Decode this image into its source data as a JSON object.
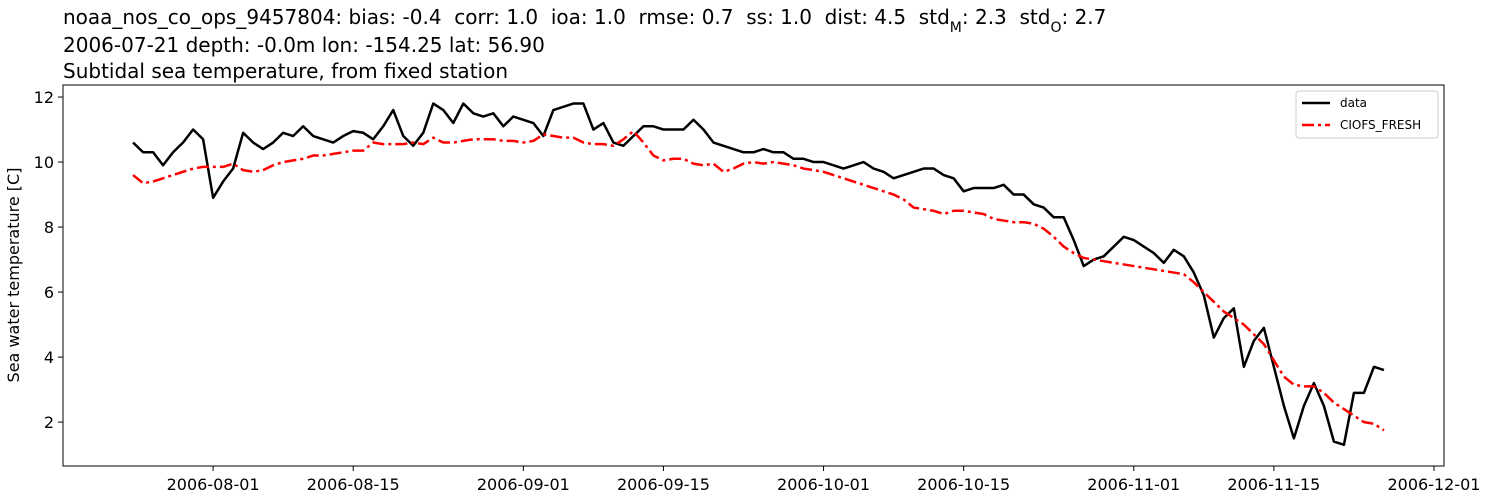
{
  "chart_data": {
    "type": "line",
    "title": [
      {
        "text": "noaa_nos_co_ops_9457804: bias: -0.4  corr: 1.0  ioa: 1.0  rmse: 0.7  ss: 1.0  dist: 4.5  std"
      },
      {
        "text": "M",
        "sub": true
      },
      {
        "text": ": 2.3  std"
      },
      {
        "text": "O",
        "sub": true
      },
      {
        "text": ": 2.7"
      }
    ],
    "subtitle": [
      "2006-07-21 depth: -0.0m lon: -154.25 lat: 56.90",
      "Subtidal sea temperature, from fixed station"
    ],
    "y_label": "Sea water temperature [C]",
    "x": [
      "2006-07-24",
      "2006-07-25",
      "2006-07-26",
      "2006-07-27",
      "2006-07-28",
      "2006-07-29",
      "2006-07-30",
      "2006-07-31",
      "2006-08-01",
      "2006-08-02",
      "2006-08-03",
      "2006-08-04",
      "2006-08-05",
      "2006-08-06",
      "2006-08-07",
      "2006-08-08",
      "2006-08-09",
      "2006-08-10",
      "2006-08-11",
      "2006-08-12",
      "2006-08-13",
      "2006-08-14",
      "2006-08-15",
      "2006-08-16",
      "2006-08-17",
      "2006-08-18",
      "2006-08-19",
      "2006-08-20",
      "2006-08-21",
      "2006-08-22",
      "2006-08-23",
      "2006-08-24",
      "2006-08-25",
      "2006-08-26",
      "2006-08-27",
      "2006-08-28",
      "2006-08-29",
      "2006-08-30",
      "2006-08-31",
      "2006-09-01",
      "2006-09-02",
      "2006-09-03",
      "2006-09-04",
      "2006-09-05",
      "2006-09-06",
      "2006-09-07",
      "2006-09-08",
      "2006-09-09",
      "2006-09-10",
      "2006-09-11",
      "2006-09-12",
      "2006-09-13",
      "2006-09-14",
      "2006-09-15",
      "2006-09-16",
      "2006-09-17",
      "2006-09-18",
      "2006-09-19",
      "2006-09-20",
      "2006-09-21",
      "2006-09-22",
      "2006-09-23",
      "2006-09-24",
      "2006-09-25",
      "2006-09-26",
      "2006-09-27",
      "2006-09-28",
      "2006-09-29",
      "2006-09-30",
      "2006-10-01",
      "2006-10-02",
      "2006-10-03",
      "2006-10-04",
      "2006-10-05",
      "2006-10-06",
      "2006-10-07",
      "2006-10-08",
      "2006-10-09",
      "2006-10-10",
      "2006-10-11",
      "2006-10-12",
      "2006-10-13",
      "2006-10-14",
      "2006-10-15",
      "2006-10-16",
      "2006-10-17",
      "2006-10-18",
      "2006-10-19",
      "2006-10-20",
      "2006-10-21",
      "2006-10-22",
      "2006-10-23",
      "2006-10-24",
      "2006-10-25",
      "2006-10-26",
      "2006-10-27",
      "2006-10-28",
      "2006-10-29",
      "2006-10-30",
      "2006-10-31",
      "2006-11-01",
      "2006-11-02",
      "2006-11-03",
      "2006-11-04",
      "2006-11-05",
      "2006-11-06",
      "2006-11-07",
      "2006-11-08",
      "2006-11-09",
      "2006-11-10",
      "2006-11-11",
      "2006-11-12",
      "2006-11-13",
      "2006-11-14",
      "2006-11-15",
      "2006-11-16",
      "2006-11-17",
      "2006-11-18",
      "2006-11-19",
      "2006-11-20",
      "2006-11-21",
      "2006-11-22",
      "2006-11-23",
      "2006-11-24",
      "2006-11-25",
      "2006-11-26"
    ],
    "series": [
      {
        "name": "data",
        "color": "#000000",
        "dash": "solid",
        "values": [
          10.6,
          10.3,
          10.3,
          9.9,
          10.3,
          10.6,
          11.0,
          10.7,
          8.9,
          9.4,
          9.8,
          10.9,
          10.6,
          10.4,
          10.6,
          10.9,
          10.8,
          11.1,
          10.8,
          10.7,
          10.6,
          10.8,
          10.95,
          10.9,
          10.7,
          11.1,
          11.6,
          10.8,
          10.5,
          10.9,
          11.8,
          11.6,
          11.2,
          11.8,
          11.5,
          11.4,
          11.5,
          11.1,
          11.4,
          11.3,
          11.2,
          10.8,
          11.6,
          11.7,
          11.8,
          11.8,
          11.0,
          11.2,
          10.6,
          10.5,
          10.8,
          11.1,
          11.1,
          11.0,
          11.0,
          11.0,
          11.3,
          11.0,
          10.6,
          10.5,
          10.4,
          10.3,
          10.3,
          10.4,
          10.3,
          10.3,
          10.1,
          10.1,
          10.0,
          10.0,
          9.9,
          9.8,
          9.9,
          10.0,
          9.8,
          9.7,
          9.5,
          9.6,
          9.7,
          9.8,
          9.8,
          9.6,
          9.5,
          9.1,
          9.2,
          9.2,
          9.2,
          9.3,
          9.0,
          9.0,
          8.7,
          8.6,
          8.3,
          8.3,
          7.6,
          6.8,
          7.0,
          7.1,
          7.4,
          7.7,
          7.6,
          7.4,
          7.2,
          6.9,
          7.3,
          7.1,
          6.6,
          5.9,
          4.6,
          5.2,
          5.5,
          3.7,
          4.5,
          4.9,
          3.7,
          2.5,
          1.5,
          2.5,
          3.2,
          2.5,
          1.4,
          1.3,
          2.9,
          2.9,
          3.7,
          3.6
        ]
      },
      {
        "name": "CIOFS_FRESH",
        "color": "#ff0000",
        "dash": "dashdot",
        "values": [
          9.6,
          9.35,
          9.4,
          9.5,
          9.6,
          9.7,
          9.8,
          9.85,
          9.85,
          9.85,
          9.95,
          9.75,
          9.7,
          9.75,
          9.9,
          10.0,
          10.05,
          10.1,
          10.2,
          10.2,
          10.25,
          10.3,
          10.35,
          10.35,
          10.6,
          10.55,
          10.55,
          10.55,
          10.6,
          10.55,
          10.75,
          10.6,
          10.6,
          10.65,
          10.7,
          10.7,
          10.7,
          10.65,
          10.65,
          10.6,
          10.65,
          10.85,
          10.8,
          10.75,
          10.75,
          10.6,
          10.55,
          10.55,
          10.5,
          10.7,
          10.95,
          10.6,
          10.2,
          10.05,
          10.1,
          10.1,
          9.95,
          9.9,
          9.95,
          9.7,
          9.8,
          9.95,
          10.0,
          9.95,
          10.0,
          9.95,
          9.9,
          9.8,
          9.75,
          9.7,
          9.6,
          9.5,
          9.4,
          9.3,
          9.2,
          9.1,
          9.0,
          8.85,
          8.6,
          8.55,
          8.5,
          8.4,
          8.5,
          8.5,
          8.45,
          8.4,
          8.25,
          8.2,
          8.15,
          8.15,
          8.1,
          7.95,
          7.7,
          7.4,
          7.2,
          7.05,
          7.0,
          6.95,
          6.9,
          6.85,
          6.8,
          6.75,
          6.7,
          6.65,
          6.6,
          6.55,
          6.3,
          6.0,
          5.7,
          5.4,
          5.2,
          5.0,
          4.7,
          4.4,
          3.9,
          3.4,
          3.15,
          3.1,
          3.1,
          2.9,
          2.6,
          2.4,
          2.2,
          2.0,
          1.95,
          1.75
        ]
      }
    ],
    "xlim": [
      "2006-07-17",
      "2006-12-02"
    ],
    "xticks": [
      "2006-08-01",
      "2006-08-15",
      "2006-09-01",
      "2006-09-15",
      "2006-10-01",
      "2006-10-15",
      "2006-11-01",
      "2006-11-15",
      "2006-12-01"
    ],
    "ylim": [
      0.65,
      12.37
    ],
    "yticks": [
      2,
      4,
      6,
      8,
      10,
      12
    ],
    "grid": false,
    "legend": "upper right"
  }
}
